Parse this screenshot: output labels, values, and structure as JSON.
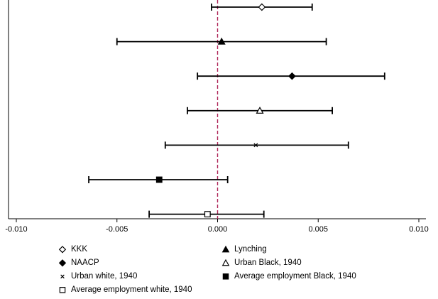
{
  "chart_data": {
    "type": "scatter",
    "subtype": "coefficient-plot-horizontal-error-bars",
    "title": "",
    "xlabel": "",
    "ylabel": "",
    "xlim": [
      -0.0105,
      0.0102
    ],
    "x_ticks": [
      {
        "value": -0.01,
        "label": "-0.010"
      },
      {
        "value": -0.005,
        "label": "-0.005"
      },
      {
        "value": 0.0,
        "label": "0.000"
      },
      {
        "value": 0.005,
        "label": "0.005"
      },
      {
        "value": 0.01,
        "label": "0.010"
      }
    ],
    "reference_line": {
      "x": 0,
      "style": "dashed",
      "color": "#b0285a"
    },
    "grid": false,
    "legend_position": "bottom",
    "series": [
      {
        "name": "KKK",
        "marker": "diamond-open",
        "estimate": 0.0022,
        "ci_low": -0.0003,
        "ci_high": 0.0047
      },
      {
        "name": "Lynching",
        "marker": "triangle-filled",
        "estimate": 0.0002,
        "ci_low": -0.005,
        "ci_high": 0.0054
      },
      {
        "name": "NAACP",
        "marker": "diamond-filled",
        "estimate": 0.0037,
        "ci_low": -0.001,
        "ci_high": 0.0083
      },
      {
        "name": "Urban Black, 1940",
        "marker": "triangle-open",
        "estimate": 0.0021,
        "ci_low": -0.0015,
        "ci_high": 0.0057
      },
      {
        "name": "Urban white, 1940",
        "marker": "x",
        "estimate": 0.0019,
        "ci_low": -0.0026,
        "ci_high": 0.0065
      },
      {
        "name": "Average employment Black, 1940",
        "marker": "square-filled",
        "estimate": -0.0029,
        "ci_low": -0.0064,
        "ci_high": 0.0005
      },
      {
        "name": "Average employment white, 1940",
        "marker": "square-open",
        "estimate": -0.0005,
        "ci_low": -0.0034,
        "ci_high": 0.0023
      }
    ],
    "legend_order": [
      "KKK",
      "Lynching",
      "NAACP",
      "Urban Black, 1940",
      "Urban white, 1940",
      "Average employment Black, 1940",
      "Average employment white, 1940"
    ]
  }
}
